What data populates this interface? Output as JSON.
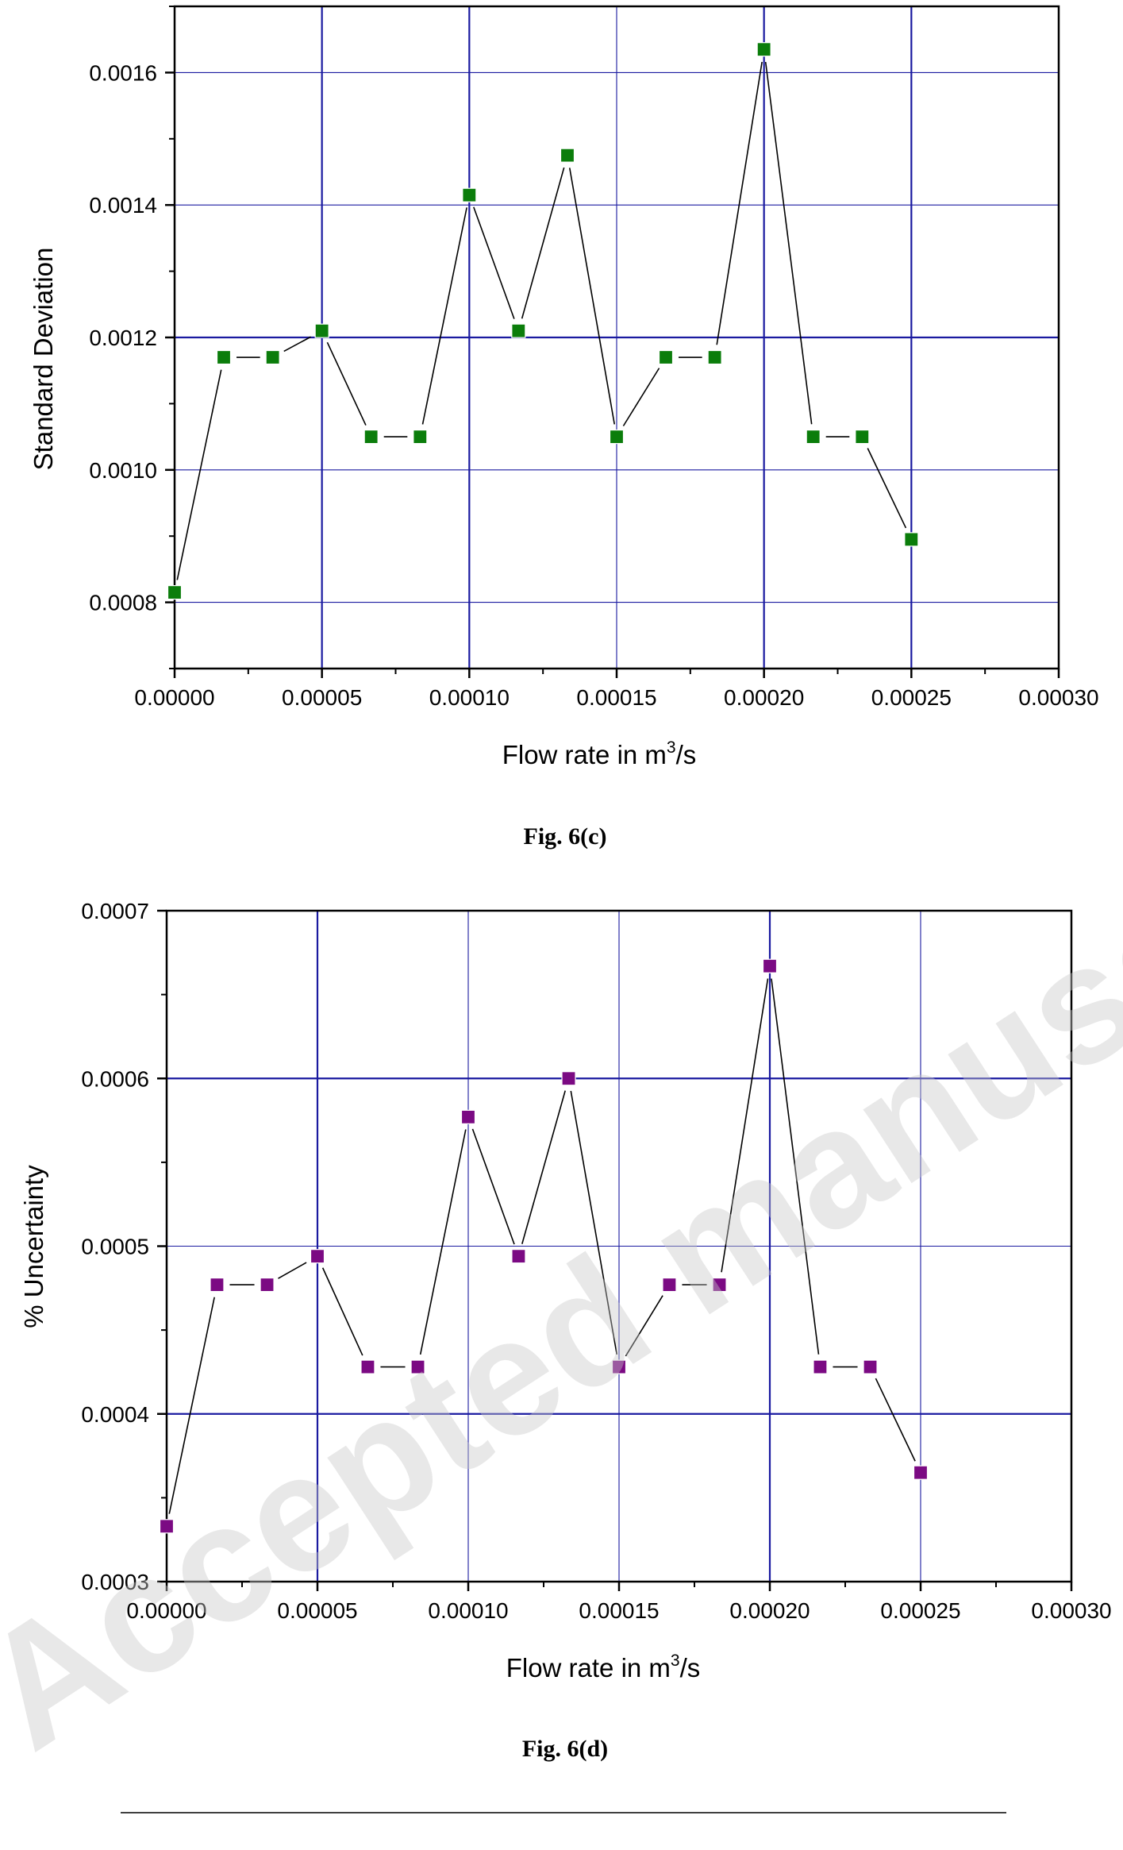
{
  "chart_data": [
    {
      "type": "line",
      "xlabel": "Flow rate in m",
      "xlabel_sup": "3",
      "xlabel_suffix": "/s",
      "ylabel": "Standard Deviation",
      "xlim": [
        0,
        0.0003
      ],
      "ylim": [
        0.0007,
        0.0017
      ],
      "x_ticks": [
        "0.00000",
        "0.00005",
        "0.00010",
        "0.00015",
        "0.00020",
        "0.00025",
        "0.00030"
      ],
      "y_ticks": [
        "0.0008",
        "0.0010",
        "0.0012",
        "0.0014",
        "0.0016"
      ],
      "marker_color": "#0b7d0b",
      "grid": true,
      "series": [
        {
          "x": [
            0,
            1.67e-05,
            3.33e-05,
            5e-05,
            6.67e-05,
            8.33e-05,
            0.0001,
            0.0001167,
            0.0001333,
            0.00015,
            0.0001667,
            0.0001833,
            0.0002,
            0.0002167,
            0.0002333,
            0.00025
          ],
          "y": [
            0.000815,
            0.00117,
            0.00117,
            0.00121,
            0.00105,
            0.00105,
            0.001415,
            0.00121,
            0.001475,
            0.00105,
            0.00117,
            0.00117,
            0.001635,
            0.00105,
            0.00105,
            0.000895
          ]
        }
      ],
      "caption": "Fig. 6(c)"
    },
    {
      "type": "line",
      "xlabel": "Flow rate in m",
      "xlabel_sup": "3",
      "xlabel_suffix": "/s",
      "ylabel": "% Uncertainty",
      "xlim": [
        0,
        0.0003
      ],
      "ylim": [
        0.0003,
        0.0007
      ],
      "x_ticks": [
        "0.00000",
        "0.00005",
        "0.00010",
        "0.00015",
        "0.00020",
        "0.00025",
        "0.00030"
      ],
      "y_ticks": [
        "0.0003",
        "0.0004",
        "0.0005",
        "0.0006",
        "0.0007"
      ],
      "marker_color": "#7b0a83",
      "grid": true,
      "series": [
        {
          "x": [
            0,
            1.67e-05,
            3.33e-05,
            5e-05,
            6.67e-05,
            8.33e-05,
            0.0001,
            0.0001167,
            0.0001333,
            0.00015,
            0.0001667,
            0.0001833,
            0.0002,
            0.0002167,
            0.0002333,
            0.00025
          ],
          "y": [
            0.000333,
            0.000477,
            0.000477,
            0.000494,
            0.000428,
            0.000428,
            0.000577,
            0.000494,
            0.0006,
            0.000428,
            0.000477,
            0.000477,
            0.000667,
            0.000428,
            0.000428,
            0.000365
          ]
        }
      ],
      "caption": "Fig. 6(d)"
    }
  ],
  "watermark": "Accepted manuscript"
}
